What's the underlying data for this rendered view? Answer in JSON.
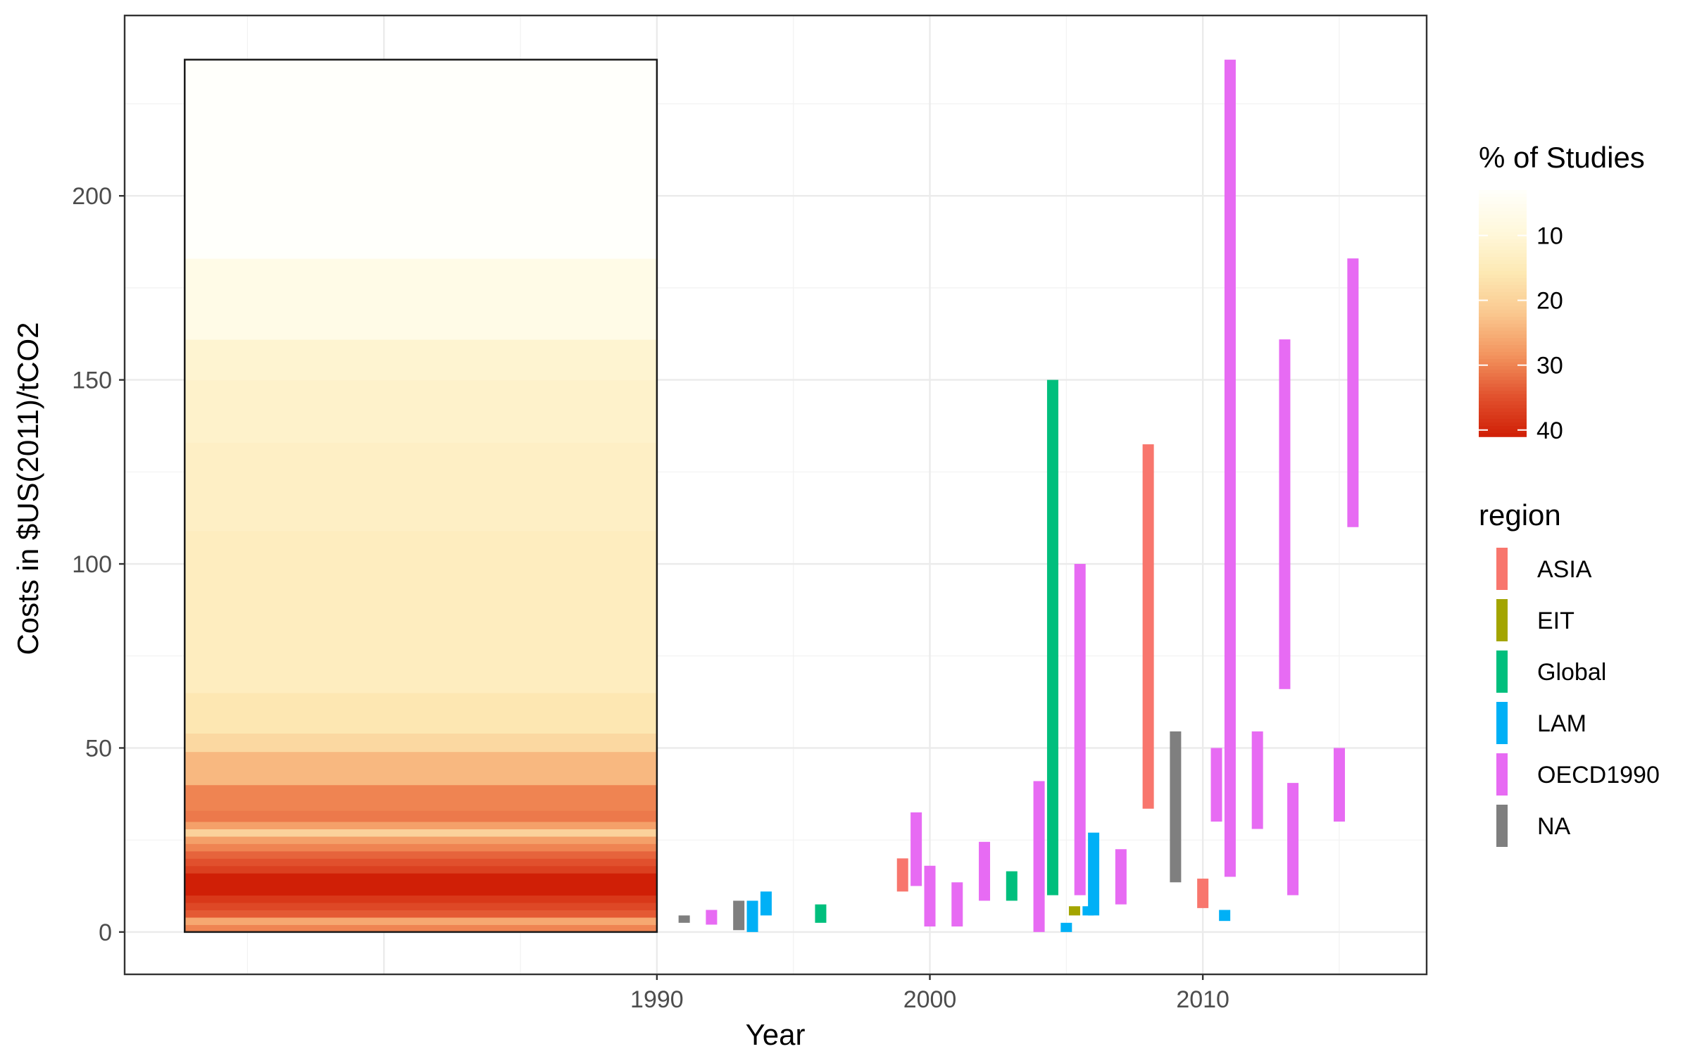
{
  "chart_data": {
    "type": "bar",
    "xlabel": "Year",
    "ylabel": "Costs in $US(2011)/tCO2",
    "xlim": [
      1970.5,
      2018.2
    ],
    "ylim": [
      -11.5,
      249
    ],
    "x_ticks": [
      1990,
      2000,
      2010
    ],
    "y_ticks": [
      0,
      50,
      100,
      150,
      200
    ],
    "grid": true,
    "summary_box": {
      "x_range": [
        1972.7,
        1990
      ],
      "y_range": [
        0,
        237
      ],
      "bands": [
        {
          "y0": 0,
          "y1": 2,
          "pct": 30
        },
        {
          "y0": 2,
          "y1": 4,
          "pct": 26
        },
        {
          "y0": 4,
          "y1": 6,
          "pct": 34
        },
        {
          "y0": 6,
          "y1": 8,
          "pct": 36
        },
        {
          "y0": 8,
          "y1": 10,
          "pct": 38
        },
        {
          "y0": 10,
          "y1": 12,
          "pct": 41
        },
        {
          "y0": 12,
          "y1": 14,
          "pct": 43
        },
        {
          "y0": 14,
          "y1": 16,
          "pct": 43
        },
        {
          "y0": 16,
          "y1": 18,
          "pct": 37
        },
        {
          "y0": 18,
          "y1": 20,
          "pct": 35
        },
        {
          "y0": 20,
          "y1": 22,
          "pct": 33
        },
        {
          "y0": 22,
          "y1": 24,
          "pct": 30
        },
        {
          "y0": 24,
          "y1": 26,
          "pct": 27
        },
        {
          "y0": 26,
          "y1": 28,
          "pct": 20
        },
        {
          "y0": 28,
          "y1": 30,
          "pct": 27
        },
        {
          "y0": 30,
          "y1": 33,
          "pct": 31
        },
        {
          "y0": 33,
          "y1": 40,
          "pct": 30
        },
        {
          "y0": 40,
          "y1": 49,
          "pct": 24
        },
        {
          "y0": 49,
          "y1": 54,
          "pct": 19
        },
        {
          "y0": 54,
          "y1": 65,
          "pct": 16
        },
        {
          "y0": 65,
          "y1": 109,
          "pct": 14
        },
        {
          "y0": 109,
          "y1": 133,
          "pct": 13
        },
        {
          "y0": 133,
          "y1": 150,
          "pct": 12
        },
        {
          "y0": 150,
          "y1": 161,
          "pct": 11
        },
        {
          "y0": 161,
          "y1": 183,
          "pct": 7
        },
        {
          "y0": 183,
          "y1": 237,
          "pct": 1
        }
      ]
    },
    "fill_legend": {
      "title": "% of Studies",
      "breaks": [
        10,
        20,
        30,
        40
      ],
      "range": [
        3,
        41
      ],
      "colors": [
        "#fffffb",
        "#fff8dc",
        "#fde9b4",
        "#fac88f",
        "#f3955f",
        "#e2532f",
        "#d01f06"
      ]
    },
    "color_legend": {
      "title": "region",
      "items": [
        {
          "name": "ASIA",
          "color": "#f8766d"
        },
        {
          "name": "EIT",
          "color": "#a3a500"
        },
        {
          "name": "Global",
          "color": "#00bf7d"
        },
        {
          "name": "LAM",
          "color": "#00b0f6"
        },
        {
          "name": "OECD1990",
          "color": "#e76bf3"
        },
        {
          "name": "NA",
          "color": "#7f7f7f"
        }
      ]
    },
    "series": [
      {
        "region": "NA",
        "x": 1991.0,
        "ymin": 2.5,
        "ymax": 4.5
      },
      {
        "region": "OECD1990",
        "x": 1992.0,
        "ymin": 2,
        "ymax": 6
      },
      {
        "region": "NA",
        "x": 1993.0,
        "ymin": 0.5,
        "ymax": 8.5
      },
      {
        "region": "LAM",
        "x": 1993.5,
        "ymin": 0,
        "ymax": 8.5
      },
      {
        "region": "LAM",
        "x": 1994.0,
        "ymin": 4.5,
        "ymax": 11
      },
      {
        "region": "Global",
        "x": 1996.0,
        "ymin": 2.5,
        "ymax": 7.5
      },
      {
        "region": "ASIA",
        "x": 1999.0,
        "ymin": 11,
        "ymax": 20
      },
      {
        "region": "OECD1990",
        "x": 1999.5,
        "ymin": 12.5,
        "ymax": 32.5
      },
      {
        "region": "OECD1990",
        "x": 2000.0,
        "ymin": 1.5,
        "ymax": 18
      },
      {
        "region": "OECD1990",
        "x": 2001.0,
        "ymin": 1.5,
        "ymax": 13.5
      },
      {
        "region": "OECD1990",
        "x": 2002.0,
        "ymin": 8.5,
        "ymax": 24.5
      },
      {
        "region": "Global",
        "x": 2003.0,
        "ymin": 8.5,
        "ymax": 16.5
      },
      {
        "region": "OECD1990",
        "x": 2004.0,
        "ymin": 0,
        "ymax": 41
      },
      {
        "region": "Global",
        "x": 2004.5,
        "ymin": 10,
        "ymax": 150
      },
      {
        "region": "LAM",
        "x": 2005.0,
        "ymin": 0,
        "ymax": 2.5
      },
      {
        "region": "EIT",
        "x": 2005.3,
        "ymin": 4.5,
        "ymax": 7
      },
      {
        "region": "OECD1990",
        "x": 2005.5,
        "ymin": 10,
        "ymax": 100
      },
      {
        "region": "LAM",
        "x": 2005.8,
        "ymin": 4.5,
        "ymax": 7
      },
      {
        "region": "LAM",
        "x": 2006.0,
        "ymin": 4.5,
        "ymax": 27
      },
      {
        "region": "OECD1990",
        "x": 2007.0,
        "ymin": 7.5,
        "ymax": 22.5
      },
      {
        "region": "ASIA",
        "x": 2008.0,
        "ymin": 33.5,
        "ymax": 132.5
      },
      {
        "region": "NA",
        "x": 2009.0,
        "ymin": 13.5,
        "ymax": 54.5
      },
      {
        "region": "ASIA",
        "x": 2010.0,
        "ymin": 6.5,
        "ymax": 14.5
      },
      {
        "region": "OECD1990",
        "x": 2010.5,
        "ymin": 30,
        "ymax": 50
      },
      {
        "region": "LAM",
        "x": 2010.8,
        "ymin": 3,
        "ymax": 6
      },
      {
        "region": "OECD1990",
        "x": 2011.0,
        "ymin": 15,
        "ymax": 237
      },
      {
        "region": "OECD1990",
        "x": 2012.0,
        "ymin": 28,
        "ymax": 54.5
      },
      {
        "region": "OECD1990",
        "x": 2013.0,
        "ymin": 66,
        "ymax": 161
      },
      {
        "region": "OECD1990",
        "x": 2013.3,
        "ymin": 10,
        "ymax": 40.5
      },
      {
        "region": "OECD1990",
        "x": 2015.0,
        "ymin": 30,
        "ymax": 50
      },
      {
        "region": "OECD1990",
        "x": 2015.5,
        "ymin": 110,
        "ymax": 183
      }
    ]
  }
}
